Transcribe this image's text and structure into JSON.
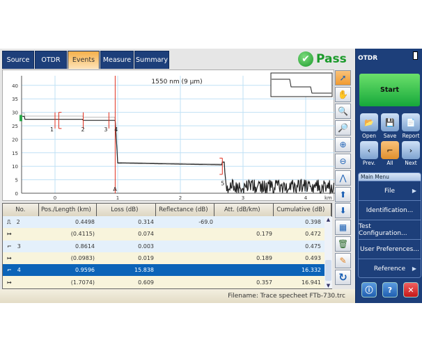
{
  "tabs": [
    {
      "label": "Source"
    },
    {
      "label": "OTDR"
    },
    {
      "label": "Events",
      "active": true
    },
    {
      "label": "Measure"
    },
    {
      "label": "Summary"
    }
  ],
  "status_badge": {
    "label": "Pass",
    "color": "#1a9a2a"
  },
  "chart": {
    "title": "1550 nm (9 µm)",
    "x_unit": "km",
    "x_ticks": [
      "0",
      "1",
      "2",
      "3",
      "4"
    ],
    "y_ticks": [
      "0",
      "5",
      "10",
      "15",
      "20",
      "25",
      "30",
      "35",
      "40"
    ],
    "event_labels": [
      "1",
      "2",
      "3",
      "4",
      "5"
    ],
    "cursor_label": "A",
    "trace_color": "#222222",
    "marker_color": "#e03020"
  },
  "chart_tools": [
    "pointer-icon",
    "hand-pan-icon",
    "zoom-area-icon",
    "zoom-fit-icon",
    "zoom-in-icon",
    "zoom-out-icon",
    "zoom-event-icon",
    "move-up-icon"
  ],
  "table": {
    "columns": [
      "No.",
      "Pos./Length (km)",
      "Loss (dB)",
      "Reflectance (dB)",
      "Att. (dB/km)",
      "Cumulative (dB)"
    ],
    "rows": [
      {
        "icon": "reflective-event-icon",
        "no": "2",
        "pos": "0.4498",
        "loss": "0.314",
        "refl": "-69.0",
        "att": "",
        "cum": "0.398",
        "kind": "ev"
      },
      {
        "icon": "span-icon",
        "no": "",
        "pos": "(0.4115)",
        "loss": "0.074",
        "refl": "",
        "att": "0.179",
        "cum": "0.472",
        "kind": "sp"
      },
      {
        "icon": "non-reflective-event-icon",
        "no": "3",
        "pos": "0.8614",
        "loss": "0.003",
        "refl": "",
        "att": "",
        "cum": "0.475",
        "kind": "ev"
      },
      {
        "icon": "span-icon",
        "no": "",
        "pos": "(0.0983)",
        "loss": "0.019",
        "refl": "",
        "att": "0.189",
        "cum": "0.493",
        "kind": "sp"
      },
      {
        "icon": "non-reflective-event-icon",
        "no": "4",
        "pos": "0.9596",
        "loss": "15.838",
        "refl": "",
        "att": "",
        "cum": "16.332",
        "kind": "sel"
      },
      {
        "icon": "span-icon",
        "no": "",
        "pos": "(1.7074)",
        "loss": "0.609",
        "refl": "",
        "att": "0.357",
        "cum": "16.941",
        "kind": "sp"
      }
    ]
  },
  "table_tools": [
    "move-down-icon",
    "event-table-icon",
    "trash-icon",
    "pencil-icon",
    "refresh-icon"
  ],
  "status": {
    "filename": "Filename: Trace specheet FTb-730.trc"
  },
  "sidebar": {
    "title": "OTDR",
    "start": "Start",
    "buttons": [
      "Open",
      "Save",
      "Report",
      "Prev.",
      "All",
      "Next"
    ],
    "menu_header": "Main Menu",
    "menu": [
      {
        "label": "File",
        "arrow": true
      },
      {
        "label": "Identification..."
      },
      {
        "label": "Test Configuration..."
      },
      {
        "label": "User Preferences..."
      },
      {
        "label": "Reference",
        "arrow": true
      }
    ]
  }
}
